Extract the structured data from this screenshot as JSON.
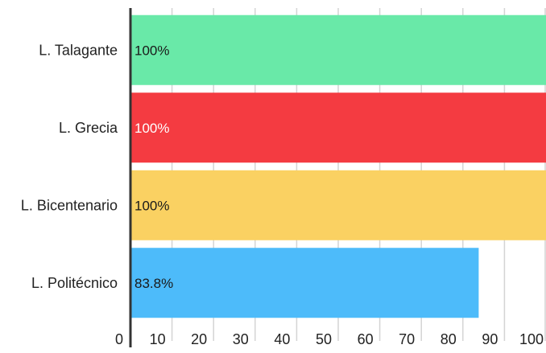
{
  "chart_data": {
    "type": "bar",
    "orientation": "horizontal",
    "categories": [
      "L. Talagante",
      "L. Grecia",
      "L. Bicentenario",
      "L. Politécnico"
    ],
    "values": [
      100,
      100,
      100,
      83.8
    ],
    "data_labels": [
      "100%",
      "100%",
      "100%",
      "83.8%"
    ],
    "colors": [
      "#69e9a8",
      "#f43b41",
      "#fad162",
      "#4dbbfa"
    ],
    "label_colors": [
      "#1a1a1a",
      "#ffffff",
      "#1a1a1a",
      "#1a1a1a"
    ],
    "xlim": [
      0,
      100
    ],
    "x_ticks": [
      0,
      10,
      20,
      30,
      40,
      50,
      60,
      70,
      80,
      90,
      100
    ],
    "x_tick_labels": [
      "0",
      "10",
      "20",
      "30",
      "40",
      "50",
      "60",
      "70",
      "80",
      "90",
      "100"
    ],
    "grid": "vertical",
    "title": "",
    "xlabel": "",
    "ylabel": ""
  }
}
